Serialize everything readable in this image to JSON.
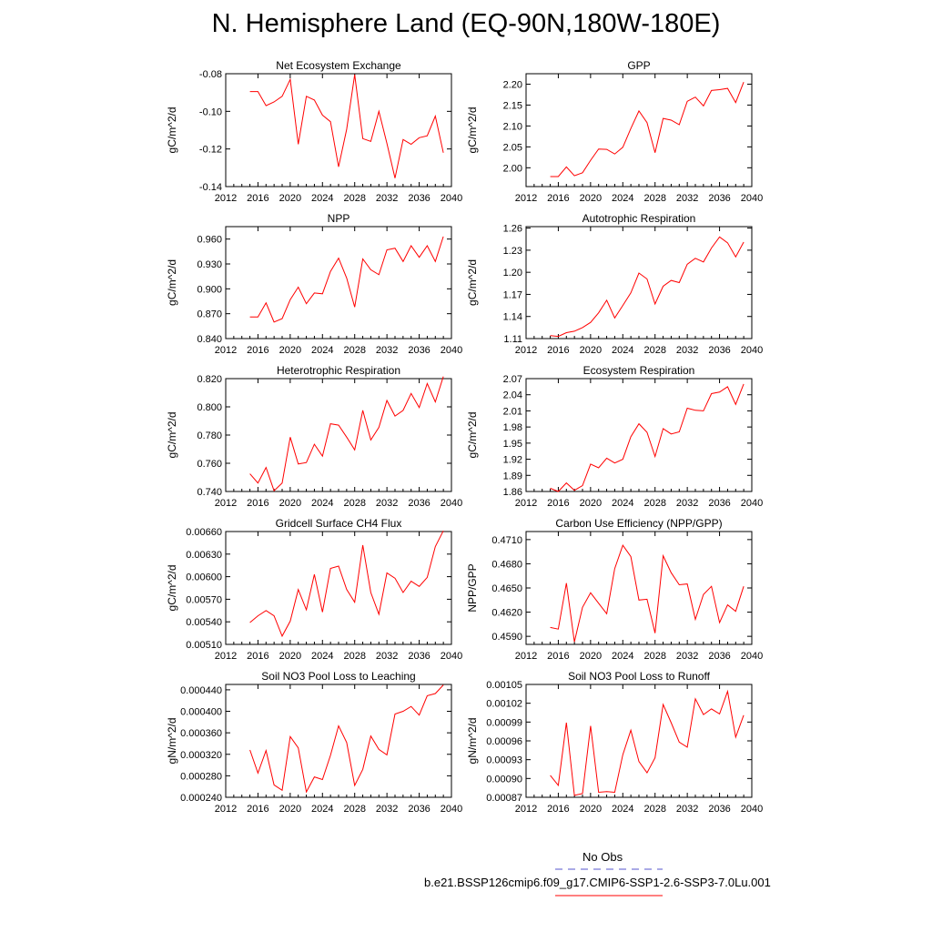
{
  "title": "N. Hemisphere Land (EQ-90N,180W-180E)",
  "legend": {
    "obs_label": "No Obs",
    "obs_color": "#5555cc",
    "model_label": "b.e21.BSSP126cmip6.f09_g17.CMIP6-SSP1-2.6-SSP3-7.0Lu.001",
    "model_color": "#ff0000"
  },
  "chart_data": [
    {
      "type": "line",
      "title": "Net Ecosystem Exchange",
      "ylabel": "gC/m^2/d",
      "xlim": [
        2012,
        2040
      ],
      "xticks": [
        "2012",
        "2016",
        "2020",
        "2024",
        "2028",
        "2032",
        "2036",
        "2040"
      ],
      "ylim": [
        -0.14,
        -0.08
      ],
      "yticks": [
        "-0.14",
        "-0.12",
        "-0.10",
        "-0.08"
      ],
      "x": [
        2015,
        2016,
        2017,
        2018,
        2019,
        2020,
        2021,
        2022,
        2023,
        2024,
        2025,
        2026,
        2027,
        2028,
        2029,
        2030,
        2031,
        2032,
        2033,
        2034,
        2035,
        2036,
        2037,
        2038,
        2039
      ],
      "values": [
        -0.0895,
        -0.0895,
        -0.097,
        -0.095,
        -0.092,
        -0.083,
        -0.1175,
        -0.092,
        -0.094,
        -0.102,
        -0.1055,
        -0.1295,
        -0.1095,
        -0.0805,
        -0.1145,
        -0.116,
        -0.1,
        -0.117,
        -0.1355,
        -0.115,
        -0.1175,
        -0.114,
        -0.113,
        -0.1025,
        -0.122
      ]
    },
    {
      "type": "line",
      "title": "GPP",
      "ylabel": "gC/m^2/d",
      "xlim": [
        2012,
        2040
      ],
      "xticks": [
        "2012",
        "2016",
        "2020",
        "2024",
        "2028",
        "2032",
        "2036",
        "2040"
      ],
      "ylim": [
        1.955,
        2.225
      ],
      "yticks": [
        "2.00",
        "2.05",
        "2.10",
        "2.15",
        "2.20"
      ],
      "x": [
        2015,
        2016,
        2017,
        2018,
        2019,
        2020,
        2021,
        2022,
        2023,
        2024,
        2025,
        2026,
        2027,
        2028,
        2029,
        2030,
        2031,
        2032,
        2033,
        2034,
        2035,
        2036,
        2037,
        2038,
        2039
      ],
      "values": [
        1.979,
        1.979,
        2.002,
        1.981,
        1.988,
        2.018,
        2.045,
        2.044,
        2.033,
        2.049,
        2.094,
        2.136,
        2.108,
        2.036,
        2.118,
        2.114,
        2.103,
        2.159,
        2.169,
        2.148,
        2.185,
        2.187,
        2.19,
        2.156,
        2.205
      ]
    },
    {
      "type": "line",
      "title": "NPP",
      "ylabel": "gC/m^2/d",
      "xlim": [
        2012,
        2040
      ],
      "xticks": [
        "2012",
        "2016",
        "2020",
        "2024",
        "2028",
        "2032",
        "2036",
        "2040"
      ],
      "ylim": [
        0.84,
        0.975
      ],
      "yticks": [
        "0.840",
        "0.870",
        "0.900",
        "0.930",
        "0.960"
      ],
      "x": [
        2015,
        2016,
        2017,
        2018,
        2019,
        2020,
        2021,
        2022,
        2023,
        2024,
        2025,
        2026,
        2027,
        2028,
        2029,
        2030,
        2031,
        2032,
        2033,
        2034,
        2035,
        2036,
        2037,
        2038,
        2039
      ],
      "values": [
        0.866,
        0.866,
        0.883,
        0.86,
        0.864,
        0.887,
        0.902,
        0.882,
        0.895,
        0.894,
        0.921,
        0.937,
        0.913,
        0.878,
        0.936,
        0.923,
        0.917,
        0.947,
        0.949,
        0.933,
        0.952,
        0.938,
        0.952,
        0.933,
        0.963
      ]
    },
    {
      "type": "line",
      "title": "Autotrophic Respiration",
      "ylabel": "gC/m^2/d",
      "xlim": [
        2012,
        2040
      ],
      "xticks": [
        "2012",
        "2016",
        "2020",
        "2024",
        "2028",
        "2032",
        "2036",
        "2040"
      ],
      "ylim": [
        1.11,
        1.262
      ],
      "yticks": [
        "1.11",
        "1.14",
        "1.17",
        "1.20",
        "1.23",
        "1.26"
      ],
      "x": [
        2015,
        2016,
        2017,
        2018,
        2019,
        2020,
        2021,
        2022,
        2023,
        2024,
        2025,
        2026,
        2027,
        2028,
        2029,
        2030,
        2031,
        2032,
        2033,
        2034,
        2035,
        2036,
        2037,
        2038,
        2039
      ],
      "values": [
        1.114,
        1.113,
        1.118,
        1.12,
        1.125,
        1.132,
        1.145,
        1.162,
        1.138,
        1.155,
        1.172,
        1.199,
        1.191,
        1.157,
        1.181,
        1.189,
        1.186,
        1.211,
        1.219,
        1.214,
        1.233,
        1.248,
        1.24,
        1.221,
        1.241
      ]
    },
    {
      "type": "line",
      "title": "Heterotrophic Respiration",
      "ylabel": "gC/m^2/d",
      "xlim": [
        2012,
        2040
      ],
      "xticks": [
        "2012",
        "2016",
        "2020",
        "2024",
        "2028",
        "2032",
        "2036",
        "2040"
      ],
      "ylim": [
        0.74,
        0.82
      ],
      "yticks": [
        "0.740",
        "0.760",
        "0.780",
        "0.800",
        "0.820"
      ],
      "x": [
        2015,
        2016,
        2017,
        2018,
        2019,
        2020,
        2021,
        2022,
        2023,
        2024,
        2025,
        2026,
        2027,
        2028,
        2029,
        2030,
        2031,
        2032,
        2033,
        2034,
        2035,
        2036,
        2037,
        2038,
        2039
      ],
      "values": [
        0.7525,
        0.746,
        0.757,
        0.7405,
        0.746,
        0.7785,
        0.7595,
        0.7605,
        0.7735,
        0.765,
        0.788,
        0.787,
        0.7785,
        0.7695,
        0.7975,
        0.7765,
        0.7855,
        0.8045,
        0.7935,
        0.7975,
        0.8095,
        0.7995,
        0.8165,
        0.8035,
        0.8215
      ]
    },
    {
      "type": "line",
      "title": "Ecosystem Respiration",
      "ylabel": "gC/m^2/d",
      "xlim": [
        2012,
        2040
      ],
      "xticks": [
        "2012",
        "2016",
        "2020",
        "2024",
        "2028",
        "2032",
        "2036",
        "2040"
      ],
      "ylim": [
        1.86,
        2.07
      ],
      "yticks": [
        "1.86",
        "1.89",
        "1.92",
        "1.95",
        "1.98",
        "2.01",
        "2.04",
        "2.07"
      ],
      "x": [
        2015,
        2016,
        2017,
        2018,
        2019,
        2020,
        2021,
        2022,
        2023,
        2024,
        2025,
        2026,
        2027,
        2028,
        2029,
        2030,
        2031,
        2032,
        2033,
        2034,
        2035,
        2036,
        2037,
        2038,
        2039
      ],
      "values": [
        1.866,
        1.86,
        1.876,
        1.862,
        1.871,
        1.911,
        1.904,
        1.922,
        1.913,
        1.92,
        1.962,
        1.986,
        1.97,
        1.925,
        1.977,
        1.967,
        1.971,
        2.015,
        2.011,
        2.01,
        2.042,
        2.045,
        2.055,
        2.022,
        2.06
      ]
    },
    {
      "type": "line",
      "title": "Gridcell Surface CH4 Flux",
      "ylabel": "gC/m^2/d",
      "xlim": [
        2012,
        2040
      ],
      "xticks": [
        "2012",
        "2016",
        "2020",
        "2024",
        "2028",
        "2032",
        "2036",
        "2040"
      ],
      "ylim": [
        0.0051,
        0.0066
      ],
      "yticks": [
        "0.00510",
        "0.00540",
        "0.00570",
        "0.00600",
        "0.00630",
        "0.00660"
      ],
      "x": [
        2015,
        2016,
        2017,
        2018,
        2019,
        2020,
        2021,
        2022,
        2023,
        2024,
        2025,
        2026,
        2027,
        2028,
        2029,
        2030,
        2031,
        2032,
        2033,
        2034,
        2035,
        2036,
        2037,
        2038,
        2039
      ],
      "values": [
        0.00539,
        0.00548,
        0.00555,
        0.00548,
        0.00521,
        0.00541,
        0.00583,
        0.00556,
        0.00603,
        0.00553,
        0.00611,
        0.00614,
        0.00583,
        0.00566,
        0.00642,
        0.00579,
        0.0055,
        0.00605,
        0.00598,
        0.00579,
        0.00594,
        0.00587,
        0.00599,
        0.0064,
        0.00661
      ]
    },
    {
      "type": "line",
      "title": "Carbon Use Efficiency (NPP/GPP)",
      "ylabel": "NPP/GPP",
      "xlim": [
        2012,
        2040
      ],
      "xticks": [
        "2012",
        "2016",
        "2020",
        "2024",
        "2028",
        "2032",
        "2036",
        "2040"
      ],
      "ylim": [
        0.458,
        0.472
      ],
      "yticks": [
        "0.4590",
        "0.4620",
        "0.4650",
        "0.4680",
        "0.4710"
      ],
      "x": [
        2015,
        2016,
        2017,
        2018,
        2019,
        2020,
        2021,
        2022,
        2023,
        2024,
        2025,
        2026,
        2027,
        2028,
        2029,
        2030,
        2031,
        2032,
        2033,
        2034,
        2035,
        2036,
        2037,
        2038,
        2039
      ],
      "values": [
        0.4601,
        0.4599,
        0.4656,
        0.4583,
        0.4626,
        0.4644,
        0.4631,
        0.4618,
        0.4674,
        0.4703,
        0.4689,
        0.4635,
        0.4636,
        0.4594,
        0.469,
        0.4669,
        0.4654,
        0.4655,
        0.4611,
        0.4642,
        0.4652,
        0.4607,
        0.4629,
        0.4621,
        0.4652
      ]
    },
    {
      "type": "line",
      "title": "Soil NO3 Pool Loss to Leaching",
      "ylabel": "gN/m^2/d",
      "xlim": [
        2012,
        2040
      ],
      "xticks": [
        "2012",
        "2016",
        "2020",
        "2024",
        "2028",
        "2032",
        "2036",
        "2040"
      ],
      "ylim": [
        0.00024,
        0.00045
      ],
      "yticks": [
        "0.000240",
        "0.000280",
        "0.000320",
        "0.000360",
        "0.000400",
        "0.000440"
      ],
      "x": [
        2015,
        2016,
        2017,
        2018,
        2019,
        2020,
        2021,
        2022,
        2023,
        2024,
        2025,
        2026,
        2027,
        2028,
        2029,
        2030,
        2031,
        2032,
        2033,
        2034,
        2035,
        2036,
        2037,
        2038,
        2039
      ],
      "values": [
        0.000328,
        0.000285,
        0.000327,
        0.000263,
        0.000253,
        0.000353,
        0.000332,
        0.00025,
        0.000278,
        0.000273,
        0.000318,
        0.000373,
        0.000342,
        0.000262,
        0.000292,
        0.000354,
        0.000329,
        0.000319,
        0.000395,
        0.0004,
        0.000409,
        0.000393,
        0.000429,
        0.000433,
        0.000449
      ]
    },
    {
      "type": "line",
      "title": "Soil NO3 Pool Loss to Runoff",
      "ylabel": "gN/m^2/d",
      "xlim": [
        2012,
        2040
      ],
      "xticks": [
        "2012",
        "2016",
        "2020",
        "2024",
        "2028",
        "2032",
        "2036",
        "2040"
      ],
      "ylim": [
        0.00087,
        0.00105
      ],
      "yticks": [
        "0.00087",
        "0.00090",
        "0.00093",
        "0.00096",
        "0.00099",
        "0.00102",
        "0.00105"
      ],
      "x": [
        2015,
        2016,
        2017,
        2018,
        2019,
        2020,
        2021,
        2022,
        2023,
        2024,
        2025,
        2026,
        2027,
        2028,
        2029,
        2030,
        2031,
        2032,
        2033,
        2034,
        2035,
        2036,
        2037,
        2038,
        2039
      ],
      "values": [
        0.000905,
        0.000889,
        0.000989,
        0.000873,
        0.000876,
        0.000984,
        0.000878,
        0.000879,
        0.000878,
        0.000938,
        0.000977,
        0.000927,
        0.000909,
        0.000933,
        0.001018,
        0.000989,
        0.000958,
        0.00095,
        0.001027,
        0.001002,
        0.001011,
        0.001003,
        0.001039,
        0.000966,
        0.001001
      ]
    }
  ]
}
